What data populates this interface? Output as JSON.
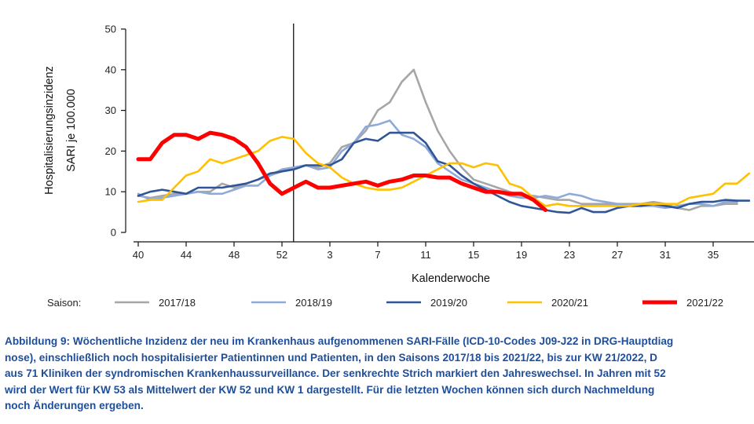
{
  "chart_data": {
    "type": "line",
    "xlabel": "Kalenderwoche",
    "ylabel_line1": "Hospitalisierungsinzidenz",
    "ylabel_line2": "SARI je 100.000",
    "ylim": [
      0,
      50
    ],
    "yticks": [
      0,
      10,
      20,
      30,
      40,
      50
    ],
    "x_tick_labels": [
      "40",
      "44",
      "48",
      "52",
      "3",
      "7",
      "11",
      "15",
      "19",
      "23",
      "27",
      "31",
      "35"
    ],
    "x_axis_note": "x values are calendar weeks starting at KW 40; week 53 lies between 52 and 1",
    "year_change_marker": "53",
    "legend_title": "Saison:",
    "grid": false,
    "series": [
      {
        "name": "2017/18",
        "color": "#a6a6a6",
        "x": [
          "40",
          "41",
          "42",
          "43",
          "44",
          "45",
          "46",
          "47",
          "48",
          "49",
          "50",
          "51",
          "52",
          "53",
          "1",
          "2",
          "3",
          "4",
          "5",
          "6",
          "7",
          "8",
          "9",
          "10",
          "11",
          "12",
          "13",
          "14",
          "15",
          "16",
          "17",
          "18",
          "19",
          "20",
          "21",
          "22",
          "23",
          "24",
          "25",
          "26",
          "27",
          "28",
          "29",
          "30",
          "31",
          "32",
          "33",
          "34",
          "35",
          "36",
          "37"
        ],
        "values": [
          9,
          8.5,
          9,
          9.5,
          9.5,
          10,
          10,
          12,
          11,
          12,
          13,
          14,
          15,
          16,
          16.5,
          16,
          17,
          21,
          22,
          25,
          30,
          32,
          37,
          40,
          32,
          25,
          20,
          16,
          13,
          12,
          11,
          10,
          9,
          9,
          8.5,
          8,
          8,
          7,
          7,
          7,
          7,
          7,
          7,
          7.5,
          7,
          6,
          5.5,
          6.5,
          6.5,
          7,
          7
        ]
      },
      {
        "name": "2018/19",
        "color": "#8eaadb",
        "x": [
          "40",
          "41",
          "42",
          "43",
          "44",
          "45",
          "46",
          "47",
          "48",
          "49",
          "50",
          "51",
          "52",
          "53",
          "1",
          "2",
          "3",
          "4",
          "5",
          "6",
          "7",
          "8",
          "9",
          "10",
          "11",
          "12",
          "13",
          "14",
          "15",
          "16",
          "17",
          "18",
          "19",
          "20",
          "21",
          "22",
          "23",
          "24",
          "25",
          "26",
          "27",
          "28",
          "29",
          "30",
          "31",
          "32",
          "33",
          "34",
          "35",
          "36",
          "37"
        ],
        "values": [
          9.5,
          8,
          8.5,
          9,
          9.5,
          10,
          9.5,
          9.5,
          10.5,
          11.5,
          11.5,
          14,
          15.5,
          16,
          16.5,
          15.5,
          16,
          20,
          22,
          26,
          26.5,
          27.5,
          24,
          23,
          21,
          17,
          15,
          13,
          12,
          11,
          10,
          9,
          8.5,
          8.5,
          9,
          8.5,
          9.5,
          9,
          8,
          7.5,
          7,
          6.5,
          6.5,
          6.5,
          6,
          6.5,
          7,
          7,
          6.5,
          7.5,
          7.5
        ]
      },
      {
        "name": "2019/20",
        "color": "#2f5597",
        "x": [
          "40",
          "41",
          "42",
          "43",
          "44",
          "45",
          "46",
          "47",
          "48",
          "49",
          "50",
          "51",
          "52",
          "53",
          "1",
          "2",
          "3",
          "4",
          "5",
          "6",
          "7",
          "8",
          "9",
          "10",
          "11",
          "12",
          "13",
          "14",
          "15",
          "16",
          "17",
          "18",
          "19",
          "20",
          "21",
          "22",
          "23",
          "24",
          "25",
          "26",
          "27",
          "28",
          "29",
          "30",
          "31",
          "32",
          "33",
          "34",
          "35",
          "36",
          "37",
          "38"
        ],
        "values": [
          9,
          10,
          10.5,
          10,
          9.5,
          11,
          11,
          11,
          11.5,
          12,
          13,
          14.5,
          15,
          15.5,
          16.5,
          16.5,
          16.5,
          18,
          22,
          23,
          22.5,
          24.5,
          24.5,
          24.5,
          22,
          17.5,
          16.5,
          14,
          12,
          10.5,
          9,
          7.5,
          6.5,
          6,
          5.5,
          5,
          4.8,
          6,
          5,
          5,
          6,
          6.5,
          6.5,
          7,
          6.5,
          6,
          7,
          7.5,
          7.5,
          8,
          7.8,
          7.8
        ]
      },
      {
        "name": "2020/21",
        "color": "#ffc000",
        "x": [
          "40",
          "41",
          "42",
          "43",
          "44",
          "45",
          "46",
          "47",
          "48",
          "49",
          "50",
          "51",
          "52",
          "53",
          "1",
          "2",
          "3",
          "4",
          "5",
          "6",
          "7",
          "8",
          "9",
          "10",
          "11",
          "12",
          "13",
          "14",
          "15",
          "16",
          "17",
          "18",
          "19",
          "20",
          "21",
          "22",
          "23",
          "24",
          "25",
          "26",
          "27",
          "28",
          "29",
          "30",
          "31",
          "32",
          "33",
          "34",
          "35",
          "36",
          "37",
          "38"
        ],
        "values": [
          7.5,
          8,
          8,
          11,
          14,
          15,
          18,
          17,
          18,
          19,
          20,
          22.5,
          23.5,
          23,
          19.5,
          17,
          16,
          13.5,
          12,
          11,
          10.5,
          10.5,
          11,
          12.5,
          14,
          15.5,
          17,
          17,
          16,
          17,
          16.5,
          12,
          11,
          8.5,
          6.5,
          7,
          6.5,
          6.5,
          6.5,
          6.5,
          6.5,
          6.5,
          7,
          7,
          7,
          7,
          8.5,
          9,
          9.5,
          12,
          12,
          14.5
        ]
      },
      {
        "name": "2021/22",
        "color": "#ff0000",
        "x": [
          "40",
          "41",
          "42",
          "43",
          "44",
          "45",
          "46",
          "47",
          "48",
          "49",
          "50",
          "51",
          "52",
          "53",
          "1",
          "2",
          "3",
          "4",
          "5",
          "6",
          "7",
          "8",
          "9",
          "10",
          "11",
          "12",
          "13",
          "14",
          "15",
          "16",
          "17",
          "18",
          "19",
          "20",
          "21"
        ],
        "values": [
          18,
          18,
          22,
          24,
          24,
          23,
          24.5,
          24,
          23,
          21,
          17,
          12,
          9.5,
          11,
          12.5,
          11,
          11,
          11.5,
          12,
          12.5,
          11.5,
          12.5,
          13,
          14,
          14,
          13.5,
          13.5,
          12,
          11,
          10,
          10,
          9.5,
          9.5,
          8,
          5.5
        ]
      }
    ]
  },
  "caption_lines": [
    "Abbildung 9: Wöchentliche Inzidenz der neu im Krankenhaus aufgenommenen SARI-Fälle (ICD-10-Codes J09-J22 in DRG-Hauptdiag",
    "nose), einschließlich noch hospitalisierter Patientinnen und Patienten, in den Saisons 2017/18 bis 2021/22, bis zur KW 21/2022, D",
    "aus 71 Kliniken der syndromischen Krankenhaussurveillance. Der senkrechte Strich markiert den Jahreswechsel. In Jahren mit 52",
    "wird der Wert für KW 53 als Mittelwert der KW 52 und KW 1 dargestellt. Für die letzten Wochen können sich durch Nachmeldung",
    "noch Änderungen ergeben."
  ]
}
